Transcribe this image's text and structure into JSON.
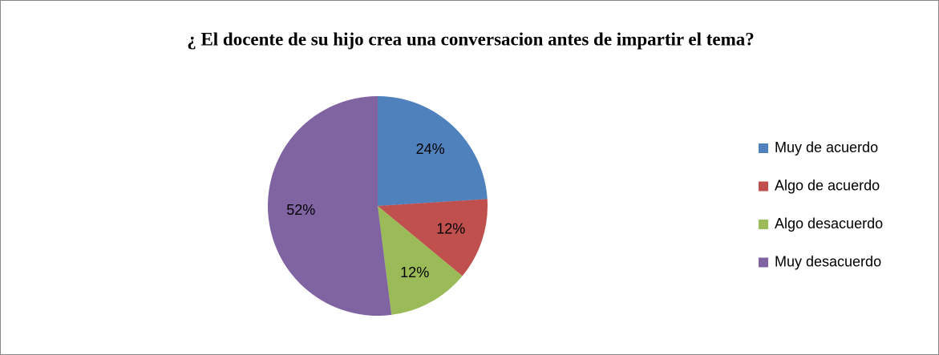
{
  "chart_data": {
    "type": "pie",
    "title": "¿ El docente de su hijo crea una conversacion antes de impartir el tema?",
    "categories": [
      "Muy de acuerdo",
      "Algo de acuerdo",
      "Algo desacuerdo",
      "Muy desacuerdo"
    ],
    "values": [
      24,
      12,
      12,
      52
    ],
    "value_labels": [
      "24%",
      "12%",
      "12%",
      "52%"
    ],
    "colors": [
      "#4f81bd",
      "#c0504d",
      "#9bbb59",
      "#8064a2"
    ],
    "legend": "right"
  }
}
